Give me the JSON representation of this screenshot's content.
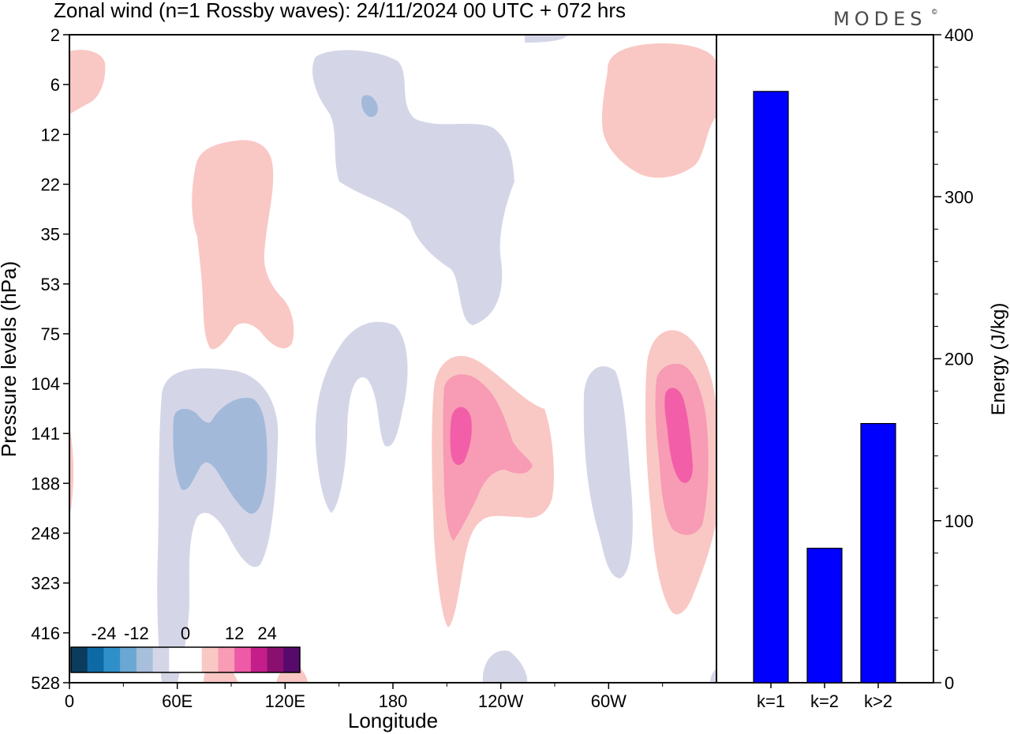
{
  "title": "Zonal wind (n=1 Rossby waves):  24/11/2024  00 UTC  + 072 hrs",
  "brand": "MODES",
  "brand_mark": "©",
  "colors": {
    "negative_fill": "#d4d6e8",
    "negative_fill_2": "#a3b9da",
    "positive_fill": "#f9c8c4",
    "positive_fill_2": "#f89bb4",
    "positive_fill_3": "#f25ea8",
    "bar": "#0000ff"
  },
  "chart_data": [
    {
      "type": "heatmap",
      "xlabel": "Longitude",
      "ylabel": "Pressure levels (hPa)",
      "x_ticks": [
        "0",
        "60E",
        "120E",
        "180",
        "120W",
        "60W"
      ],
      "y_ticks": [
        "2",
        "6",
        "12",
        "22",
        "35",
        "53",
        "75",
        "104",
        "141",
        "188",
        "248",
        "323",
        "416",
        "528"
      ],
      "xlim": [
        0,
        360
      ],
      "colorbar": {
        "labels": [
          "-24",
          "-12",
          "0",
          "12",
          "24"
        ],
        "colors": [
          "#0b3c5d",
          "#0e6aa4",
          "#2f8fc9",
          "#6aa7d3",
          "#a8bfdb",
          "#d4d6e8",
          "#ffffff",
          "#ffffff",
          "#f9c8c4",
          "#f89bb4",
          "#ee5aa6",
          "#c41e8b",
          "#8a0f6e",
          "#560a6c"
        ]
      }
    },
    {
      "type": "bar",
      "categories": [
        "k=1",
        "k=2",
        "k>2"
      ],
      "values": [
        365,
        83,
        160
      ],
      "ylabel": "Energy (J/kg)",
      "ylim": [
        0,
        400
      ],
      "y_ticks": [
        0,
        100,
        200,
        300,
        400
      ]
    }
  ]
}
